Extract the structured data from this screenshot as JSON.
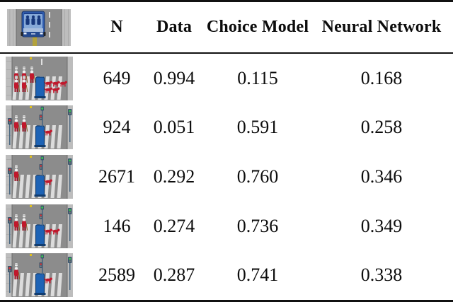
{
  "table": {
    "columns": [
      "N",
      "Data",
      "Choice Model",
      "Neural Network"
    ],
    "header_scene": {
      "type": "autonomous-car-on-road",
      "elements": [
        "road",
        "sidewalks",
        "lane-dash",
        "blue-car-with-passengers",
        "yellow-marking"
      ]
    },
    "rows": [
      {
        "n": "649",
        "data": "0.994",
        "choice_model": "0.115",
        "neural_network": "0.168",
        "scene": {
          "type": "crosswalk",
          "pedestrians": 5,
          "animals": 5,
          "signals": false,
          "lane_dash": true,
          "barrier": true
        }
      },
      {
        "n": "924",
        "data": "0.051",
        "choice_model": "0.591",
        "neural_network": "0.258",
        "scene": {
          "type": "crosswalk",
          "pedestrians": 2,
          "animals": 1,
          "signals": true,
          "lane_dash": false,
          "barrier": true
        }
      },
      {
        "n": "2671",
        "data": "0.292",
        "choice_model": "0.760",
        "neural_network": "0.346",
        "scene": {
          "type": "crosswalk",
          "pedestrians": 1,
          "animals": 1,
          "signals": true,
          "lane_dash": false,
          "barrier": true
        }
      },
      {
        "n": "146",
        "data": "0.274",
        "choice_model": "0.736",
        "neural_network": "0.349",
        "scene": {
          "type": "crosswalk",
          "pedestrians": 2,
          "animals": 2,
          "signals": true,
          "lane_dash": false,
          "barrier": true
        }
      },
      {
        "n": "2589",
        "data": "0.287",
        "choice_model": "0.741",
        "neural_network": "0.338",
        "scene": {
          "type": "crosswalk",
          "pedestrians": 1,
          "animals": 1,
          "signals": true,
          "lane_dash": false,
          "barrier": true
        }
      }
    ]
  },
  "colors": {
    "road": "#8c8c8c",
    "sidewalk": "#bdbdbd",
    "edge": "#6a6a6a",
    "stripe": "#dcdcdc",
    "person": "#c0182c",
    "person_dark": "#951122",
    "skull": "#f0f0f0",
    "barrier": "#1e63b5",
    "barrier_dark": "#123d70",
    "pole": "#47657f",
    "pole_box": "#3b566d",
    "light_green": "#3bc24f",
    "light_red": "#e03434",
    "yellow": "#ddbe1e",
    "olive": "#b3a23c",
    "car_body": "#2f5cae",
    "car_interior": "#86a9d8",
    "passenger": "#16377c",
    "rule": "#111111"
  }
}
